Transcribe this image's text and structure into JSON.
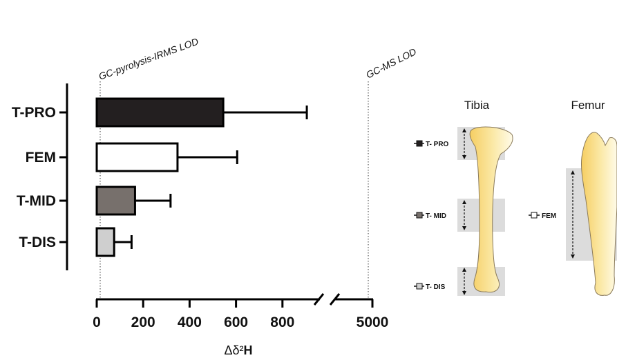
{
  "chart_data": {
    "type": "bar",
    "orientation": "horizontal",
    "categories": [
      "T-PRO",
      "FEM",
      "T-MID",
      "T-DIS"
    ],
    "values": [
      545,
      348,
      165,
      75
    ],
    "error_upper": [
      905,
      605,
      318,
      150
    ],
    "colors": [
      "#231f20",
      "#ffffff",
      "#77706c",
      "#cfcfcf"
    ],
    "xlabel_prefix": "Δδ²",
    "xlabel_bold": "H",
    "x_ticks": [
      "0",
      "200",
      "400",
      "600",
      "800",
      "5000"
    ],
    "x_axis_break": "between 800 and 5000",
    "xlim": [
      0,
      950
    ],
    "grid": false,
    "reference_lines": [
      {
        "label": "GC-pyrolysis-IRMS LOD",
        "x": 10
      },
      {
        "label": "GC-MS LOD",
        "x": 4980
      }
    ]
  },
  "illustration": {
    "tibia": {
      "title": "Tibia",
      "regions": [
        {
          "label": "T- PRO",
          "color": "#231f20"
        },
        {
          "label": "T- MID",
          "color": "#77706c"
        },
        {
          "label": "T- DIS",
          "color": "#cfcfcf"
        }
      ]
    },
    "femur": {
      "title": "Femur",
      "regions": [
        {
          "label": "FEM",
          "color": "#ffffff"
        }
      ]
    }
  }
}
